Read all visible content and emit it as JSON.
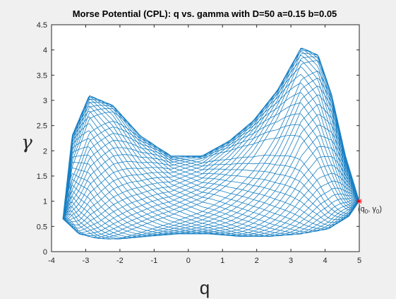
{
  "chart_data": {
    "type": "line",
    "title": "Morse Potential (CPL): q vs. gamma with D=50 a=0.15 b=0.05",
    "xlabel": "q",
    "ylabel": "γ",
    "xlim": [
      -4,
      5
    ],
    "ylim": [
      0,
      4.5
    ],
    "xticks": [
      "-4",
      "-3",
      "-2",
      "-1",
      "0",
      "1",
      "2",
      "3",
      "4",
      "5"
    ],
    "yticks": [
      "0",
      "0.5",
      "1",
      "1.5",
      "2",
      "2.5",
      "3",
      "3.5",
      "4",
      "4.5"
    ],
    "grid": false,
    "line_color": "#0072BD",
    "series": [
      {
        "curve_samples": {
          "x": [
            5.0,
            4.6,
            4.2,
            3.8,
            3.3,
            2.6,
            1.9,
            1.2,
            0.4,
            -0.5,
            -1.4,
            -2.2,
            -2.9,
            -3.4,
            -3.67,
            -3.2,
            -2.6,
            -2.0,
            -1.2,
            -0.3,
            0.6,
            1.5,
            2.4,
            3.3,
            4.1,
            4.7,
            5.0
          ],
          "y": [
            1.0,
            1.9,
            3.1,
            3.9,
            4.05,
            3.2,
            2.6,
            2.2,
            1.9,
            1.9,
            2.3,
            2.9,
            3.1,
            2.3,
            0.65,
            0.35,
            0.25,
            0.25,
            0.3,
            0.35,
            0.35,
            0.3,
            0.3,
            0.35,
            0.45,
            0.7,
            1.0
          ]
        }
      }
    ],
    "marker": {
      "x": 5.0,
      "y": 1.0,
      "color": "#ff0000",
      "symbol": "*",
      "label_q": "(q",
      "label_q_sub": "0",
      "label_gamma": ", γ",
      "label_gamma_sub": "0",
      "label_close": ")"
    }
  }
}
